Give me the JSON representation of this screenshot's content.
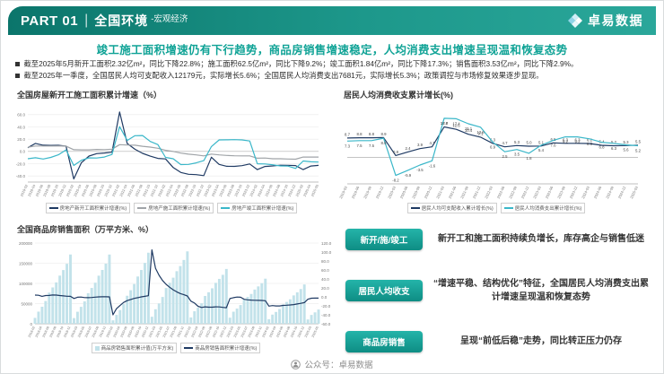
{
  "header": {
    "part": "PART 01",
    "divider": "|",
    "title": "全国环境",
    "subtitle": "-宏观经济",
    "logo_text": "卓易数据"
  },
  "headline": "竣工施工面积增速仍有下行趋势，商品房销售增速稳定，人均消费支出增速呈现温和恢复态势",
  "bullets": [
    "截至2025年5月新开工面积2.32亿m²，同比下降22.8%；施工面积62.5亿m²，同比下降9.2%；竣工面积1.84亿m²，同比下降17.3%；销售面积3.53亿m²，同比下降2.9%。",
    "截至2025年一季度，全国居民人均可支配收入12179元，实际增长5.6%；全国居民人均消费支出7681元，实际增长5.3%；政策调控与市场修复效果逐步显现。"
  ],
  "chart_data": {
    "newstart": {
      "type": "line",
      "title": "全国房屋新开工施工面积累计增速（%）",
      "ylim": [
        -50,
        70
      ],
      "yticks": [
        -40,
        -20,
        0,
        20,
        40,
        60
      ],
      "legend_pos": "bottom",
      "padL": 20,
      "padR": 8,
      "padB": 22,
      "xEvery": 1,
      "xFont": 3.9,
      "x": [
        "2019-02",
        "2019-04",
        "2019-06",
        "2019-08",
        "2019-10",
        "2019-12",
        "2020-02",
        "2020-04",
        "2020-06",
        "2020-08",
        "2020-10",
        "2020-12",
        "2021-02",
        "2021-04",
        "2021-06",
        "2021-08",
        "2021-10",
        "2021-12",
        "2022-02",
        "2022-04",
        "2022-06",
        "2022-08",
        "2022-10",
        "2022-12",
        "2023-02",
        "2023-04",
        "2023-06",
        "2023-08",
        "2023-10",
        "2023-12",
        "2024-02",
        "2024-04",
        "2024-06",
        "2024-08",
        "2024-10",
        "2024-12",
        "2025-02",
        "2025-04",
        "2025-05"
      ],
      "series": [
        {
          "name": "房地产新开工面积累计增速(%)",
          "color": "#1f3a63",
          "values": [
            6.0,
            13.1,
            10.1,
            9.9,
            10.0,
            8.5,
            -44.9,
            -18.4,
            -7.6,
            -3.6,
            -2.6,
            -1.2,
            64.3,
            12.9,
            3.6,
            -3.2,
            -7.7,
            -11.4,
            -12.2,
            -26.3,
            -34.4,
            -37.2,
            -37.8,
            -39.4,
            -9.4,
            -21.2,
            -24.3,
            -24.4,
            -23.2,
            -20.4,
            -29.7,
            -24.6,
            -23.7,
            -22.5,
            -22.6,
            -23.0,
            -29.6,
            -23.8,
            -22.8
          ]
        },
        {
          "name": "房地产施工面积累计增速(%)",
          "color": "#a0a4a8",
          "values": [
            6.8,
            8.8,
            8.8,
            8.8,
            9.0,
            8.7,
            2.9,
            2.5,
            2.6,
            3.3,
            3.0,
            3.7,
            11.0,
            10.5,
            10.2,
            8.4,
            7.1,
            5.2,
            1.8,
            0.0,
            -2.8,
            -4.5,
            -5.7,
            -7.2,
            -4.4,
            -5.6,
            -6.6,
            -7.1,
            -7.3,
            -7.2,
            -11.0,
            -10.8,
            -12.0,
            -12.0,
            -12.4,
            -12.7,
            -9.1,
            -9.2,
            -9.2
          ]
        },
        {
          "name": "房地产竣工面积累计增速(%)",
          "color": "#3ab7c9",
          "values": [
            -11.9,
            -10.3,
            -12.4,
            -9.8,
            -5.5,
            2.6,
            -22.9,
            -14.5,
            -10.5,
            -10.8,
            -9.2,
            -4.9,
            40.4,
            17.9,
            25.7,
            26.0,
            16.3,
            11.2,
            -9.8,
            -11.9,
            -21.5,
            -21.2,
            -18.7,
            -15.0,
            8.0,
            18.8,
            19.0,
            19.2,
            18.8,
            17.0,
            -20.2,
            -20.4,
            -21.8,
            -23.6,
            -23.9,
            -27.7,
            -15.6,
            -16.9,
            -17.3
          ]
        }
      ]
    },
    "income": {
      "type": "line",
      "title": "居民人均消费收支累计增长(%)",
      "ylim": [
        -12,
        22
      ],
      "yticks": [],
      "zero": true,
      "legend_pos": "bottom",
      "padL": 12,
      "padR": 12,
      "padB": 20,
      "xEvery": 1,
      "xFont": 4,
      "x": [
        "2019-03",
        "2019-06",
        "2019-09",
        "2019-12",
        "2020-03",
        "2020-06",
        "2020-09",
        "2020-12",
        "2021-03",
        "2021-06",
        "2021-09",
        "2021-12",
        "2022-03",
        "2022-06",
        "2022-09",
        "2022-12",
        "2023-03",
        "2023-06",
        "2023-09",
        "2023-12",
        "2024-03",
        "2024-06",
        "2024-09",
        "2024-12",
        "2025-03"
      ],
      "series": [
        {
          "name": "居民人均可支配收入累计增长(%)",
          "color": "#1f3a63",
          "labels": true,
          "labelDy": -2.5,
          "values": [
            8.7,
            8.8,
            8.8,
            8.9,
            0.8,
            2.4,
            3.9,
            4.7,
            13.7,
            12.6,
            10.4,
            9.1,
            6.3,
            4.7,
            5.3,
            5.0,
            5.1,
            6.5,
            6.3,
            6.3,
            6.2,
            5.4,
            5.2,
            5.3,
            5.5
          ]
        },
        {
          "name": "居民人均消费支出累计增长(%)",
          "color": "#3ab7c9",
          "labels": true,
          "labelDy": 7,
          "values": [
            7.3,
            7.5,
            7.5,
            8.6,
            -8.2,
            -5.9,
            -3.5,
            -1.6,
            17.6,
            17.4,
            15.1,
            13.6,
            6.9,
            2.5,
            3.5,
            1.8,
            5.4,
            7.6,
            9.2,
            9.2,
            8.3,
            6.8,
            6.3,
            5.6,
            5.2
          ]
        }
      ]
    },
    "sales": {
      "type": "combo",
      "title": "全国商品房销售面积（万平方米、%）",
      "ylim": [
        0,
        200000
      ],
      "yticks": [
        0,
        50000,
        100000,
        150000,
        200000
      ],
      "tickFmt": "int",
      "ylim2": [
        -60,
        120
      ],
      "yticks2": [
        -60,
        -40,
        -20,
        0,
        20,
        40,
        60,
        80,
        100,
        120
      ],
      "legend_pos": "bottom",
      "padL": 28,
      "padR": 20,
      "padB": 20,
      "xEvery": 2,
      "xFont": 3.6,
      "x": [
        "2018-02",
        "2018-03",
        "2018-04",
        "2018-05",
        "2018-06",
        "2018-07",
        "2018-08",
        "2018-09",
        "2018-10",
        "2018-11",
        "2018-12",
        "2019-02",
        "2019-03",
        "2019-04",
        "2019-05",
        "2019-06",
        "2019-07",
        "2019-08",
        "2019-09",
        "2019-10",
        "2019-11",
        "2019-12",
        "2020-02",
        "2020-03",
        "2020-04",
        "2020-05",
        "2020-06",
        "2020-07",
        "2020-08",
        "2020-09",
        "2020-10",
        "2020-11",
        "2020-12",
        "2021-02",
        "2021-03",
        "2021-04",
        "2021-05",
        "2021-06",
        "2021-07",
        "2021-08",
        "2021-09",
        "2021-10",
        "2021-11",
        "2021-12",
        "2022-02",
        "2022-03",
        "2022-04",
        "2022-05",
        "2022-06",
        "2022-07",
        "2022-08",
        "2022-09",
        "2022-10",
        "2022-11",
        "2022-12",
        "2023-02",
        "2023-03",
        "2023-04",
        "2023-05",
        "2023-06",
        "2023-07",
        "2023-08",
        "2023-09",
        "2023-10",
        "2023-11",
        "2023-12",
        "2024-02",
        "2024-03",
        "2024-04",
        "2024-05",
        "2024-06",
        "2024-07",
        "2024-08",
        "2024-09",
        "2024-10",
        "2024-11",
        "2024-12",
        "2025-02",
        "2025-03",
        "2025-04",
        "2025-05"
      ],
      "bars": {
        "name": "商品房销售面积累计值(万平方米)",
        "color": "#c2e2ea",
        "values": [
          14600,
          30100,
          42200,
          56400,
          77100,
          90000,
          102500,
          119300,
          133100,
          148600,
          171654,
          14100,
          29800,
          42000,
          55500,
          75800,
          88800,
          101800,
          119200,
          133300,
          148900,
          171558,
          8500,
          22000,
          34000,
          48700,
          69400,
          83200,
          98500,
          117100,
          133300,
          150800,
          176086,
          17400,
          36000,
          50300,
          66400,
          88600,
          101600,
          114200,
          130300,
          143000,
          158100,
          179433,
          15700,
          31000,
          39800,
          50700,
          68900,
          78100,
          87900,
          101400,
          111200,
          121300,
          135837,
          15100,
          29900,
          37600,
          46400,
          59500,
          66500,
          73900,
          84800,
          92600,
          100500,
          111735,
          11400,
          22700,
          29300,
          36600,
          47900,
          54100,
          60600,
          70300,
          77900,
          86100,
          97385,
          10700,
          21900,
          28300,
          35315
        ]
      },
      "series": [
        {
          "name": "商品房销售面积累计增速(%)",
          "color": "#1f3a63",
          "axis": 2,
          "values": [
            4.1,
            3.6,
            1.3,
            2.9,
            3.3,
            4.2,
            4.0,
            2.9,
            2.2,
            1.4,
            1.3,
            -3.6,
            -0.9,
            -0.3,
            -1.6,
            -1.8,
            -1.3,
            -0.6,
            -0.1,
            0.1,
            0.2,
            -0.1,
            -39.9,
            -26.3,
            -19.3,
            -12.3,
            -8.4,
            -5.8,
            -3.3,
            -1.8,
            0.0,
            1.3,
            2.6,
            104.9,
            63.8,
            48.1,
            36.3,
            27.7,
            21.5,
            15.9,
            11.3,
            7.3,
            4.8,
            1.9,
            -9.6,
            -13.8,
            -20.9,
            -23.6,
            -22.2,
            -23.1,
            -23.0,
            -22.2,
            -22.3,
            -23.3,
            -24.3,
            -3.6,
            -1.8,
            -0.4,
            -0.9,
            -5.3,
            -6.5,
            -7.1,
            -7.5,
            -7.8,
            -8.0,
            -8.5,
            -20.5,
            -19.4,
            -20.2,
            -20.3,
            -19.0,
            -18.6,
            -18.0,
            -17.1,
            -15.8,
            -14.3,
            -12.9,
            -5.1,
            -3.0,
            -2.8,
            -2.9
          ]
        }
      ]
    }
  },
  "panel": {
    "rows": [
      {
        "button": "新开/施/竣工",
        "text": "新开工和施工面积持续负增长，库存高企与销售低迷"
      },
      {
        "button": "居民人均收支",
        "text": "“增速平稳、结构优化”特征，全国居民人均消费支出累计增速呈现温和恢复态势"
      },
      {
        "button": "商品房销售",
        "text": "呈现“前低后稳”走势，同比转正压力仍存"
      }
    ]
  },
  "footer": {
    "text": "公众号：卓易数据"
  }
}
